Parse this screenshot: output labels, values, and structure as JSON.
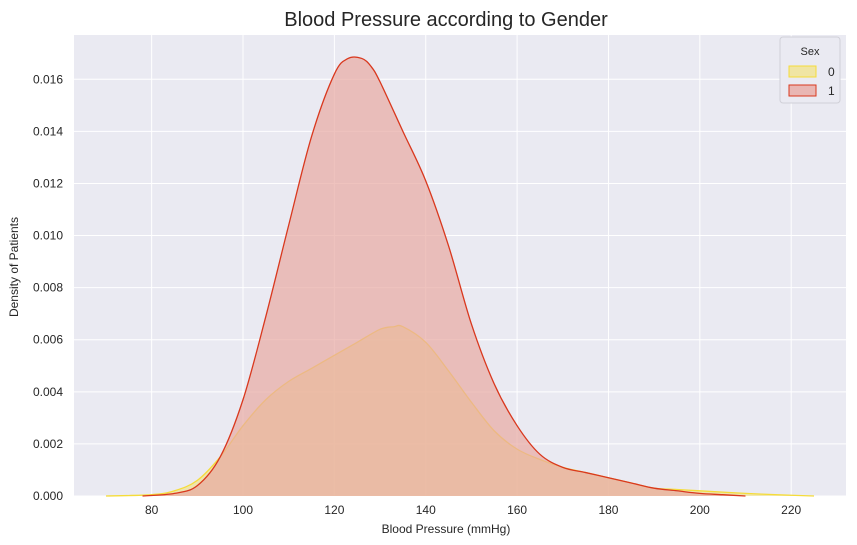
{
  "chart_data": {
    "type": "area",
    "title": "Blood Pressure according to Gender",
    "xlabel": "Blood Pressure (mmHg)",
    "ylabel": "Density of Patients",
    "xlim": [
      63,
      232
    ],
    "ylim": [
      0,
      0.0177
    ],
    "xticks": [
      80,
      100,
      120,
      140,
      160,
      180,
      200,
      220
    ],
    "yticks": [
      0.0,
      0.002,
      0.004,
      0.006,
      0.008,
      0.01,
      0.012,
      0.014,
      0.016
    ],
    "grid": true,
    "legend": {
      "title": "Sex",
      "placement": "top-right"
    },
    "series": [
      {
        "name": "0",
        "color": "#f5dc3a",
        "fill": "#f1e38f",
        "x": [
          70,
          80,
          85,
          90,
          95,
          100,
          105,
          110,
          115,
          120,
          125,
          130,
          133,
          135,
          140,
          145,
          150,
          155,
          160,
          165,
          170,
          175,
          180,
          185,
          190,
          195,
          200,
          210,
          220,
          225
        ],
        "y": [
          0.0,
          5e-05,
          0.0002,
          0.0006,
          0.0015,
          0.0027,
          0.0037,
          0.0044,
          0.0049,
          0.0054,
          0.0059,
          0.0064,
          0.0065,
          0.0065,
          0.0059,
          0.0048,
          0.0036,
          0.0025,
          0.0018,
          0.0014,
          0.0011,
          0.0009,
          0.0007,
          0.0005,
          0.0003,
          0.00025,
          0.0002,
          0.0001,
          3e-05,
          0.0
        ]
      },
      {
        "name": "1",
        "color": "#d9381e",
        "fill": "#e8a9a3",
        "x": [
          78,
          85,
          90,
          95,
          100,
          105,
          110,
          115,
          120,
          123,
          126,
          128,
          130,
          135,
          140,
          145,
          150,
          155,
          160,
          165,
          170,
          175,
          180,
          185,
          190,
          195,
          200,
          205,
          210
        ],
        "y": [
          0.0,
          0.0001,
          0.0004,
          0.0015,
          0.0037,
          0.0069,
          0.0104,
          0.0138,
          0.0162,
          0.0168,
          0.0168,
          0.0165,
          0.0159,
          0.014,
          0.0121,
          0.0096,
          0.0066,
          0.0043,
          0.0027,
          0.0016,
          0.0011,
          0.0009,
          0.0007,
          0.0005,
          0.0003,
          0.0002,
          0.0001,
          5e-05,
          0.0
        ]
      }
    ]
  }
}
